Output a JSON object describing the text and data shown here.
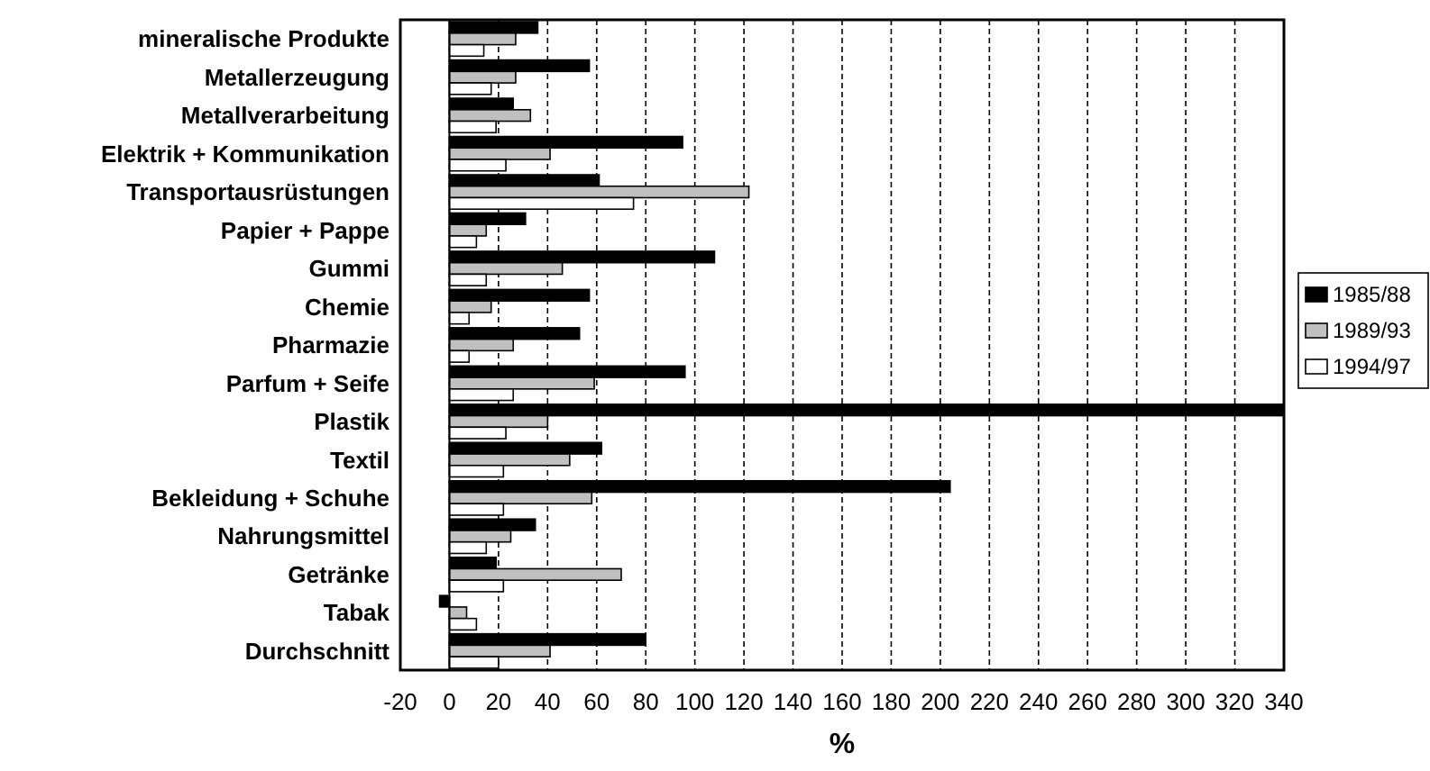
{
  "chart_data": {
    "type": "bar",
    "orientation": "horizontal",
    "xlabel": "%",
    "categories": [
      "mineralische Produkte",
      "Metallerzeugung",
      "Metallverarbeitung",
      "Elektrik + Kommunikation",
      "Transportausrüstungen",
      "Papier + Pappe",
      "Gummi",
      "Chemie",
      "Pharmazie",
      "Parfum + Seife",
      "Plastik",
      "Textil",
      "Bekleidung + Schuhe",
      "Nahrungsmittel",
      "Getränke",
      "Tabak",
      "Durchschnitt"
    ],
    "series": [
      {
        "name": "1985/88",
        "color": "#000000",
        "values": [
          36,
          57,
          26,
          95,
          61,
          31,
          108,
          57,
          53,
          96,
          340,
          62,
          204,
          35,
          19,
          -4,
          80
        ]
      },
      {
        "name": "1989/93",
        "color": "#c0c0c0",
        "values": [
          27,
          27,
          33,
          41,
          122,
          15,
          46,
          17,
          26,
          59,
          40,
          49,
          58,
          25,
          70,
          7,
          41
        ]
      },
      {
        "name": "1994/97",
        "color": "#ffffff",
        "values": [
          14,
          17,
          19,
          23,
          75,
          11,
          15,
          8,
          8,
          26,
          23,
          22,
          22,
          15,
          22,
          11,
          20
        ]
      }
    ],
    "xlim": [
      -20,
      340
    ],
    "xticks": [
      -20,
      0,
      20,
      40,
      60,
      80,
      100,
      120,
      140,
      160,
      180,
      200,
      220,
      240,
      260,
      280,
      300,
      320,
      340
    ],
    "grid": "x",
    "legend": "right"
  }
}
